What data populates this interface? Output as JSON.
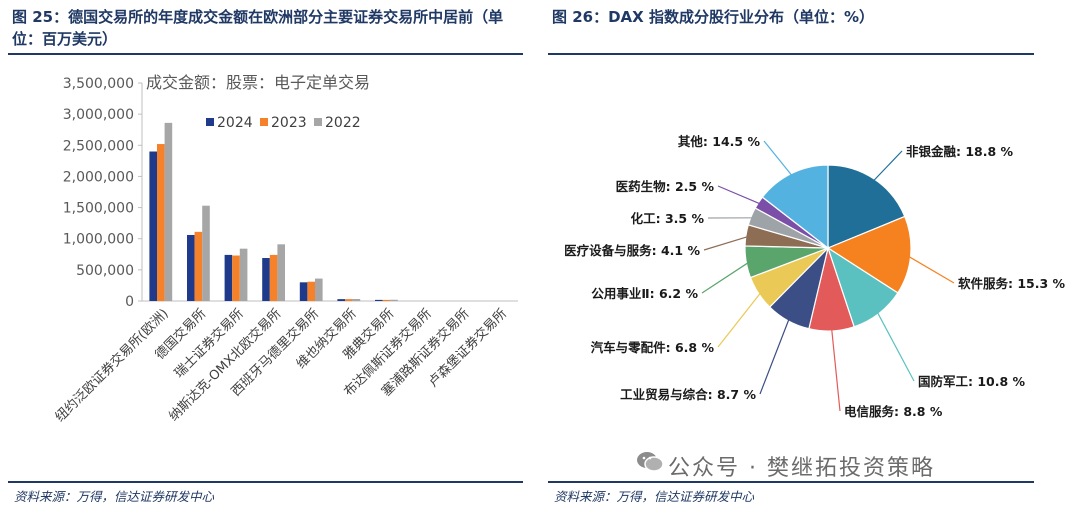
{
  "left": {
    "title": "图 25：德国交易所的年度成交金额在欧洲部分主要证券交易所中居前（单位：百万美元）",
    "source": "资料来源：万得，信达证券研发中心"
  },
  "right": {
    "title": "图 26：DAX 指数成分股行业分布（单位：%）",
    "source": "资料来源：万得，信达证券研发中心"
  },
  "watermark": "公众号 · 樊继拓投资策略",
  "colors": {
    "s2024": "#1f3a8a",
    "s2023": "#f5822a",
    "s2022": "#a6a6a6",
    "axis": "#bfbfbf",
    "text": "#595959",
    "title": "#1f3864"
  },
  "chart_data": [
    {
      "type": "bar",
      "annotation": "成交金额：股票：电子定单交易",
      "categories": [
        "纽约泛欧证券交易所(欧洲)",
        "德国交易所",
        "瑞士证券交易所",
        "纳斯达克-OMX北欧交易所",
        "西班牙马德里交易所",
        "维也纳交易所",
        "雅典交易所",
        "布达佩斯证券交易所",
        "塞浦路斯证券交易所",
        "卢森堡证券交易所"
      ],
      "series": [
        {
          "name": "2024",
          "values": [
            2400000,
            1060000,
            740000,
            690000,
            300000,
            30000,
            18000,
            0,
            0,
            0
          ]
        },
        {
          "name": "2023",
          "values": [
            2520000,
            1110000,
            730000,
            740000,
            310000,
            30000,
            18000,
            0,
            0,
            0
          ]
        },
        {
          "name": "2022",
          "values": [
            2860000,
            1530000,
            840000,
            910000,
            360000,
            32000,
            20000,
            0,
            0,
            0
          ]
        }
      ],
      "ylim": [
        0,
        3500000
      ],
      "yticks": [
        "0",
        "500,000",
        "1,000,000",
        "1,500,000",
        "2,000,000",
        "2,500,000",
        "3,000,000",
        "3,500,000"
      ],
      "legend": "top"
    },
    {
      "type": "pie",
      "slices": [
        {
          "label": "非银金融",
          "value": 18.8,
          "text": "非银金融: 18.8 %",
          "color": "#1f6f99"
        },
        {
          "label": "软件服务",
          "value": 15.3,
          "text": "软件服务: 15.3 %",
          "color": "#f5821f"
        },
        {
          "label": "国防军工",
          "value": 10.8,
          "text": "国防军工: 10.8 %",
          "color": "#5bc1c0"
        },
        {
          "label": "电信服务",
          "value": 8.8,
          "text": "电信服务: 8.8 %",
          "color": "#e35a5a"
        },
        {
          "label": "工业贸易与综合",
          "value": 8.7,
          "text": "工业贸易与综合: 8.7 %",
          "color": "#3b4f86"
        },
        {
          "label": "汽车与零配件",
          "value": 6.8,
          "text": "汽车与零配件: 6.8 %",
          "color": "#eac956"
        },
        {
          "label": "公用事业Ⅱ",
          "value": 6.2,
          "text": "公用事业Ⅱ: 6.2 %",
          "color": "#5aa56c"
        },
        {
          "label": "医疗设备与服务",
          "value": 4.1,
          "text": "医疗设备与服务: 4.1 %",
          "color": "#8d6e55"
        },
        {
          "label": "化工",
          "value": 3.5,
          "text": "化工: 3.5 %",
          "color": "#9ea3a8"
        },
        {
          "label": "医药生物",
          "value": 2.5,
          "text": "医药生物: 2.5 %",
          "color": "#7b4fa8"
        },
        {
          "label": "其他",
          "value": 14.5,
          "text": "其他: 14.5 %",
          "color": "#53b2e0"
        }
      ]
    }
  ]
}
